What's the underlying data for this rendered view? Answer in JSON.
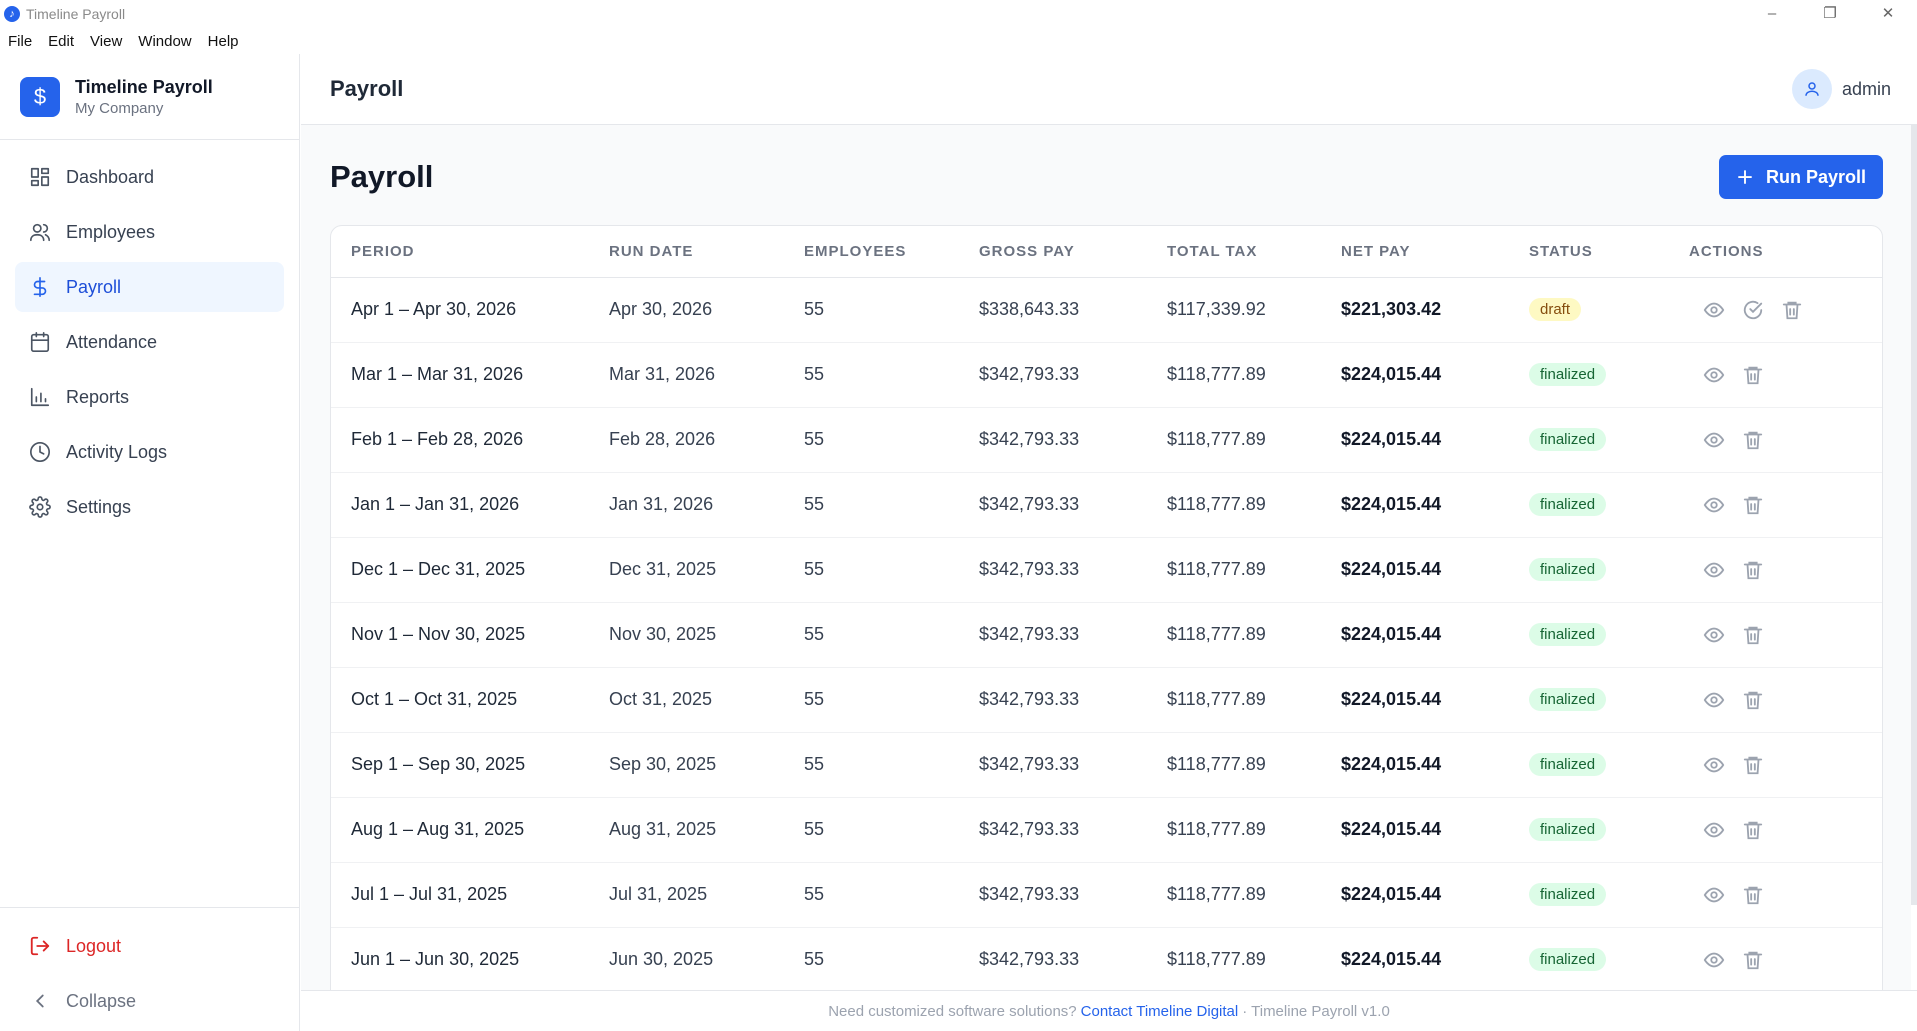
{
  "window": {
    "title": "Timeline Payroll"
  },
  "menu": [
    "File",
    "Edit",
    "View",
    "Window",
    "Help"
  ],
  "brand": {
    "name": "Timeline Payroll",
    "company": "My Company"
  },
  "sidebar": {
    "items": [
      {
        "label": "Dashboard",
        "icon": "dashboard-icon"
      },
      {
        "label": "Employees",
        "icon": "users-icon"
      },
      {
        "label": "Payroll",
        "icon": "dollar-icon",
        "active": true
      },
      {
        "label": "Attendance",
        "icon": "calendar-icon"
      },
      {
        "label": "Reports",
        "icon": "bar-chart-icon"
      },
      {
        "label": "Activity Logs",
        "icon": "clock-icon"
      },
      {
        "label": "Settings",
        "icon": "gear-icon"
      }
    ],
    "logout": "Logout",
    "collapse": "Collapse"
  },
  "header": {
    "title": "Payroll",
    "user": "admin"
  },
  "page": {
    "title": "Payroll",
    "run_button": "Run Payroll"
  },
  "table": {
    "columns": [
      "PERIOD",
      "RUN DATE",
      "EMPLOYEES",
      "GROSS PAY",
      "TOTAL TAX",
      "NET PAY",
      "STATUS",
      "ACTIONS"
    ],
    "rows": [
      {
        "period": "Apr 1 – Apr 30, 2026",
        "run_date": "Apr 30, 2026",
        "employees": "55",
        "gross": "$338,643.33",
        "tax": "$117,339.92",
        "net": "$221,303.42",
        "status": "draft"
      },
      {
        "period": "Mar 1 – Mar 31, 2026",
        "run_date": "Mar 31, 2026",
        "employees": "55",
        "gross": "$342,793.33",
        "tax": "$118,777.89",
        "net": "$224,015.44",
        "status": "finalized"
      },
      {
        "period": "Feb 1 – Feb 28, 2026",
        "run_date": "Feb 28, 2026",
        "employees": "55",
        "gross": "$342,793.33",
        "tax": "$118,777.89",
        "net": "$224,015.44",
        "status": "finalized"
      },
      {
        "period": "Jan 1 – Jan 31, 2026",
        "run_date": "Jan 31, 2026",
        "employees": "55",
        "gross": "$342,793.33",
        "tax": "$118,777.89",
        "net": "$224,015.44",
        "status": "finalized"
      },
      {
        "period": "Dec 1 – Dec 31, 2025",
        "run_date": "Dec 31, 2025",
        "employees": "55",
        "gross": "$342,793.33",
        "tax": "$118,777.89",
        "net": "$224,015.44",
        "status": "finalized"
      },
      {
        "period": "Nov 1 – Nov 30, 2025",
        "run_date": "Nov 30, 2025",
        "employees": "55",
        "gross": "$342,793.33",
        "tax": "$118,777.89",
        "net": "$224,015.44",
        "status": "finalized"
      },
      {
        "period": "Oct 1 – Oct 31, 2025",
        "run_date": "Oct 31, 2025",
        "employees": "55",
        "gross": "$342,793.33",
        "tax": "$118,777.89",
        "net": "$224,015.44",
        "status": "finalized"
      },
      {
        "period": "Sep 1 – Sep 30, 2025",
        "run_date": "Sep 30, 2025",
        "employees": "55",
        "gross": "$342,793.33",
        "tax": "$118,777.89",
        "net": "$224,015.44",
        "status": "finalized"
      },
      {
        "period": "Aug 1 – Aug 31, 2025",
        "run_date": "Aug 31, 2025",
        "employees": "55",
        "gross": "$342,793.33",
        "tax": "$118,777.89",
        "net": "$224,015.44",
        "status": "finalized"
      },
      {
        "period": "Jul 1 – Jul 31, 2025",
        "run_date": "Jul 31, 2025",
        "employees": "55",
        "gross": "$342,793.33",
        "tax": "$118,777.89",
        "net": "$224,015.44",
        "status": "finalized"
      },
      {
        "period": "Jun 1 – Jun 30, 2025",
        "run_date": "Jun 30, 2025",
        "employees": "55",
        "gross": "$342,793.33",
        "tax": "$118,777.89",
        "net": "$224,015.44",
        "status": "finalized"
      }
    ]
  },
  "footer": {
    "text": "Need customized software solutions?",
    "link": "Contact Timeline Digital",
    "suffix": "· Timeline Payroll v1.0"
  },
  "colors": {
    "accent": "#2563eb",
    "draft_bg": "#fef9c3",
    "finalized_bg": "#dcfce7",
    "logout": "#dc2626"
  }
}
